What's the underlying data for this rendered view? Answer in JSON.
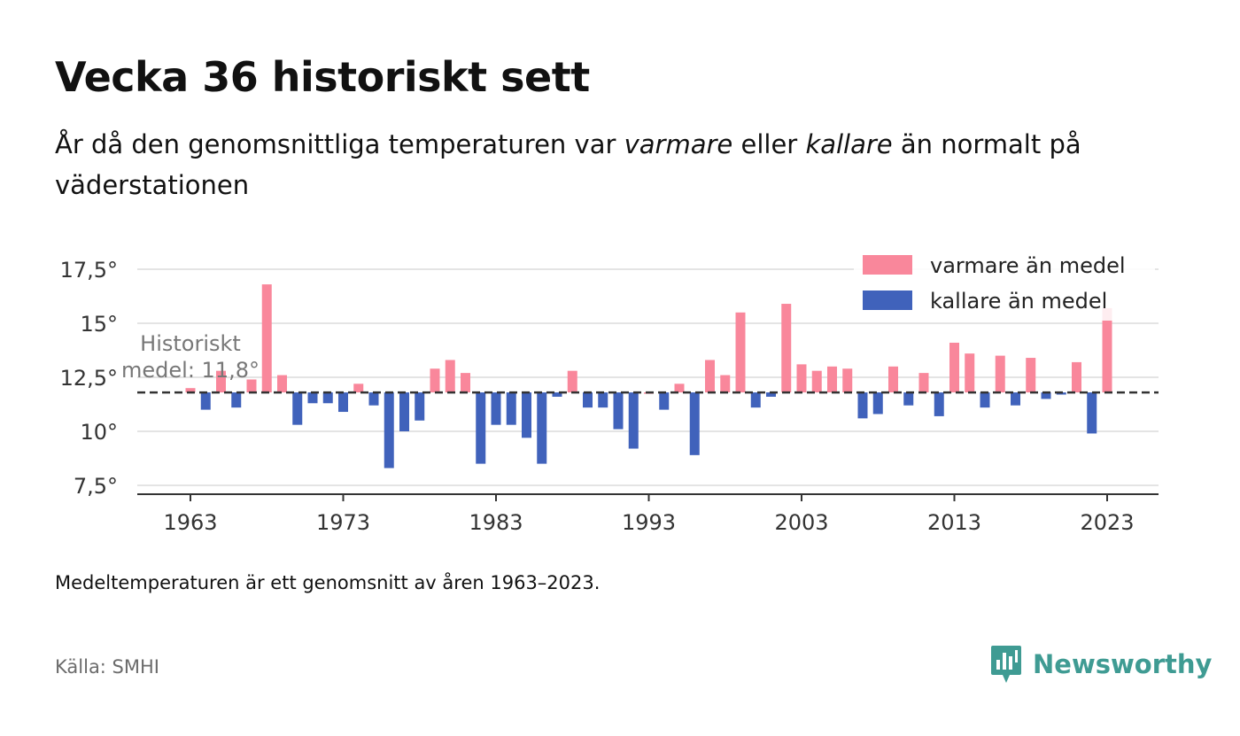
{
  "header": {
    "title": "Vecka 36 historiskt sett",
    "subtitle_part1": "År då den genomsnittliga temperaturen var ",
    "subtitle_warm": "varmare",
    "subtitle_part2": " eller ",
    "subtitle_cold": "kallare",
    "subtitle_part3": " än normalt på väderstationen"
  },
  "footer": {
    "note": "Medeltemperaturen är ett genomsnitt av åren 1963–2023.",
    "source": "Källa: SMHI",
    "brand": "Newsworthy"
  },
  "colors": {
    "warm": "#f9879b",
    "cold": "#4062bb",
    "brand": "#3f9b93",
    "grid": "#dcdcdc",
    "mean_line": "#333333"
  },
  "chart_data": {
    "type": "bar",
    "baseline": 11.8,
    "ylim": [
      7,
      18.5
    ],
    "yticks": [
      7.5,
      10,
      12.5,
      15,
      17.5
    ],
    "ytick_labels": [
      "7,5°",
      "10°",
      "12,5°",
      "15°",
      "17,5°"
    ],
    "xticks": [
      1963,
      1973,
      1983,
      1993,
      2003,
      2013,
      2023
    ],
    "grid": true,
    "legend_position": "top-right",
    "mean_annotation": [
      "Historiskt",
      "medel: 11,8°"
    ],
    "series": [
      {
        "name": "varmare än medel",
        "color": "#f9879b"
      },
      {
        "name": "kallare än medel",
        "color": "#4062bb"
      }
    ],
    "x": [
      1963,
      1964,
      1965,
      1966,
      1967,
      1968,
      1969,
      1970,
      1971,
      1972,
      1973,
      1974,
      1975,
      1976,
      1977,
      1978,
      1979,
      1980,
      1981,
      1982,
      1983,
      1984,
      1985,
      1986,
      1987,
      1988,
      1989,
      1990,
      1991,
      1992,
      1993,
      1994,
      1995,
      1996,
      1997,
      1998,
      1999,
      2000,
      2001,
      2002,
      2003,
      2004,
      2005,
      2006,
      2007,
      2008,
      2009,
      2010,
      2011,
      2012,
      2013,
      2014,
      2015,
      2016,
      2017,
      2018,
      2019,
      2020,
      2021,
      2022,
      2023
    ],
    "values": [
      12.0,
      11.0,
      12.8,
      11.1,
      12.4,
      16.8,
      12.6,
      10.3,
      11.3,
      11.3,
      10.9,
      12.2,
      11.2,
      8.3,
      10.0,
      10.5,
      12.9,
      13.3,
      12.7,
      8.5,
      10.3,
      10.3,
      9.7,
      8.5,
      11.6,
      12.8,
      11.1,
      11.1,
      10.1,
      9.2,
      11.8,
      11.0,
      12.2,
      8.9,
      13.3,
      12.6,
      15.5,
      11.1,
      11.6,
      15.9,
      13.1,
      12.8,
      13.0,
      12.9,
      10.6,
      10.8,
      13.0,
      11.2,
      12.7,
      10.7,
      14.1,
      13.6,
      11.1,
      13.5,
      11.2,
      13.4,
      11.5,
      11.7,
      13.2,
      9.9,
      15.7
    ]
  }
}
